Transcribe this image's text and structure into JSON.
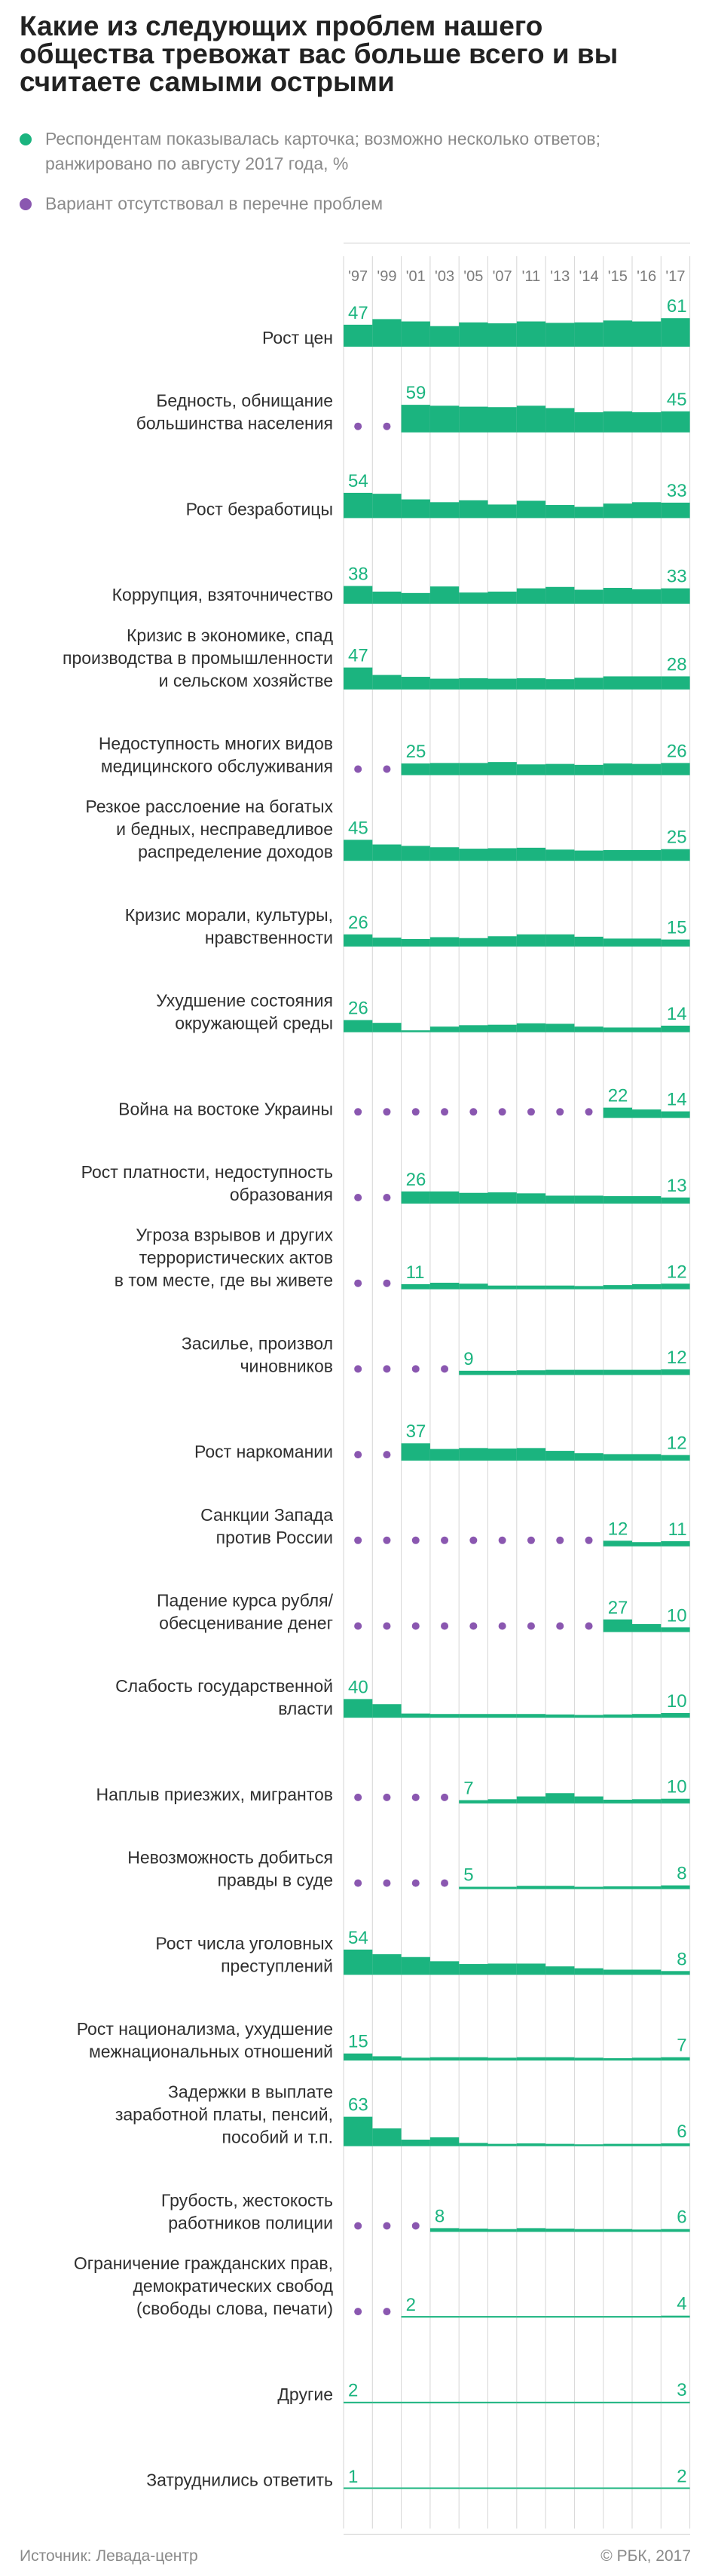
{
  "title": "Какие из следующих проблем нашего общества тревожат вас больше всего и вы считаете самыми острыми",
  "legend": {
    "shown": "Респондентам показывалась карточка; возможно несколько ответов; ранжировано по августу 2017 года, %",
    "absent": "Вариант отсутствовал в перечне проблем"
  },
  "colors": {
    "bar": "#1bb47f",
    "dot": "#8a57b0",
    "grid": "#d6d6d6"
  },
  "footer": {
    "source": "Источник: Левада-центр",
    "copyright": "© РБК, 2017"
  },
  "chart_data": {
    "type": "bar",
    "x": [
      "'97",
      "'99",
      "'01",
      "'03",
      "'05",
      "'07",
      "'11",
      "'13",
      "'14",
      "'15",
      "'16",
      "'17"
    ],
    "unit": "%",
    "rows": [
      {
        "label": [
          "Рост цен"
        ],
        "values": [
          47,
          59,
          54,
          44,
          52,
          50,
          54,
          51,
          52,
          56,
          54,
          61
        ],
        "labels": {
          "first": "47",
          "last": "61"
        }
      },
      {
        "label": [
          "Бедность, обнищание",
          "большинства населения"
        ],
        "values": [
          null,
          null,
          59,
          57,
          55,
          54,
          57,
          52,
          43,
          45,
          43,
          45
        ],
        "labels": {
          "first": "59",
          "last": "45"
        }
      },
      {
        "label": [
          "Рост безработицы"
        ],
        "values": [
          54,
          52,
          40,
          34,
          38,
          29,
          37,
          28,
          24,
          31,
          34,
          33
        ],
        "labels": {
          "first": "54",
          "last": "33"
        }
      },
      {
        "label": [
          "Коррупция, взяточничество"
        ],
        "values": [
          38,
          26,
          23,
          37,
          24,
          26,
          33,
          36,
          30,
          34,
          31,
          33
        ],
        "labels": {
          "first": "38",
          "last": "33"
        }
      },
      {
        "label": [
          "Кризис в экономике, спад",
          "производства в промышленности",
          "и сельском хозяйстве"
        ],
        "values": [
          47,
          31,
          27,
          23,
          24,
          23,
          24,
          22,
          25,
          28,
          28,
          28
        ],
        "labels": {
          "first": "47",
          "last": "28"
        }
      },
      {
        "label": [
          "Недоступность многих видов",
          "медицинского обслуживания"
        ],
        "values": [
          null,
          null,
          25,
          26,
          26,
          28,
          23,
          24,
          22,
          25,
          24,
          26
        ],
        "labels": {
          "first": "25",
          "last": "26"
        }
      },
      {
        "label": [
          "Резкое расслоение на богатых",
          "и бедных, несправедливое",
          "распределение доходов"
        ],
        "values": [
          45,
          35,
          32,
          29,
          26,
          27,
          28,
          24,
          22,
          23,
          23,
          25
        ],
        "labels": {
          "first": "45",
          "last": "25"
        }
      },
      {
        "label": [
          "Кризис морали, культуры,",
          "нравственности"
        ],
        "values": [
          26,
          19,
          16,
          20,
          18,
          22,
          26,
          26,
          21,
          17,
          17,
          15
        ],
        "labels": {
          "first": "26",
          "last": "15"
        }
      },
      {
        "label": [
          "Ухудшение состояния",
          "окружающей среды"
        ],
        "values": [
          26,
          20,
          4,
          12,
          15,
          16,
          19,
          18,
          12,
          10,
          10,
          14
        ],
        "labels": {
          "first": "26",
          "last": "14"
        }
      },
      {
        "label": [
          "Война на востоке Украины"
        ],
        "values": [
          null,
          null,
          null,
          null,
          null,
          null,
          null,
          null,
          null,
          22,
          18,
          14
        ],
        "labels": {
          "first": "22",
          "last": "14"
        }
      },
      {
        "label": [
          "Рост платности, недоступность",
          "образования"
        ],
        "values": [
          null,
          null,
          26,
          26,
          23,
          24,
          22,
          17,
          17,
          16,
          16,
          13
        ],
        "labels": {
          "first": "26",
          "last": "13"
        }
      },
      {
        "label": [
          "Угроза взрывов и других",
          "террористических актов",
          "в том месте, где вы живете"
        ],
        "values": [
          null,
          null,
          11,
          14,
          12,
          8,
          8,
          8,
          7,
          9,
          11,
          12
        ],
        "labels": {
          "first": "11",
          "last": "12"
        }
      },
      {
        "label": [
          "Засилье, произвол",
          "чиновников"
        ],
        "values": [
          null,
          null,
          null,
          null,
          9,
          9,
          10,
          11,
          11,
          11,
          11,
          12
        ],
        "labels": {
          "first": "9",
          "last": "12"
        }
      },
      {
        "label": [
          "Рост наркомании"
        ],
        "values": [
          null,
          null,
          37,
          25,
          27,
          26,
          27,
          21,
          16,
          14,
          14,
          12
        ],
        "labels": {
          "first": "37",
          "last": "12"
        }
      },
      {
        "label": [
          "Санкции Запада",
          "против России"
        ],
        "values": [
          null,
          null,
          null,
          null,
          null,
          null,
          null,
          null,
          null,
          12,
          9,
          11
        ],
        "labels": {
          "first": "12",
          "last": "11"
        }
      },
      {
        "label": [
          "Падение курса рубля/",
          "обесценивание денег"
        ],
        "values": [
          null,
          null,
          null,
          null,
          null,
          null,
          null,
          null,
          null,
          27,
          17,
          10
        ],
        "labels": {
          "first": "27",
          "last": "10"
        }
      },
      {
        "label": [
          "Слабость государственной",
          "власти"
        ],
        "values": [
          40,
          29,
          9,
          8,
          8,
          8,
          8,
          7,
          6,
          7,
          8,
          10
        ],
        "labels": {
          "first": "40",
          "last": "10"
        }
      },
      {
        "label": [
          "Наплыв приезжих, мигрантов"
        ],
        "values": [
          null,
          null,
          null,
          null,
          7,
          9,
          15,
          22,
          15,
          8,
          9,
          10
        ],
        "labels": {
          "first": "7",
          "last": "10"
        }
      },
      {
        "label": [
          "Невозможность добиться",
          "правды в суде"
        ],
        "values": [
          null,
          null,
          null,
          null,
          5,
          5,
          7,
          7,
          5,
          6,
          6,
          8
        ],
        "labels": {
          "first": "5",
          "last": "8"
        }
      },
      {
        "label": [
          "Рост числа уголовных",
          "преступлений"
        ],
        "values": [
          54,
          44,
          38,
          29,
          23,
          24,
          24,
          18,
          14,
          11,
          11,
          8
        ],
        "labels": {
          "first": "54",
          "last": "8"
        }
      },
      {
        "label": [
          "Рост национализма, ухудшение",
          "межнациональных отношений"
        ],
        "values": [
          15,
          9,
          6,
          7,
          7,
          6,
          7,
          7,
          6,
          5,
          6,
          7
        ],
        "labels": {
          "first": "15",
          "last": "7"
        }
      },
      {
        "label": [
          "Задержки в выплате",
          "заработной платы, пенсий,",
          "пособий и т.п."
        ],
        "values": [
          63,
          38,
          14,
          19,
          7,
          5,
          6,
          5,
          4,
          5,
          5,
          6
        ],
        "labels": {
          "first": "63",
          "last": "6"
        }
      },
      {
        "label": [
          "Грубость, жестокость",
          "работников полиции"
        ],
        "values": [
          null,
          null,
          null,
          8,
          7,
          6,
          8,
          7,
          6,
          6,
          5,
          6
        ],
        "labels": {
          "first": "8",
          "last": "6"
        }
      },
      {
        "label": [
          "Ограничение гражданских прав,",
          "демократических свобод",
          "(свободы слова, печати)"
        ],
        "values": [
          null,
          null,
          2,
          2,
          2,
          2,
          2,
          3,
          3,
          3,
          3,
          4
        ],
        "labels": {
          "first": "2",
          "last": "4"
        }
      },
      {
        "label": [
          "Другие"
        ],
        "values": [
          2,
          2,
          2,
          2,
          2,
          2,
          2,
          2,
          2,
          2,
          3,
          3
        ],
        "labels": {
          "first": "2",
          "last": "3"
        }
      },
      {
        "label": [
          "Затруднились ответить"
        ],
        "values": [
          1,
          1,
          2,
          1,
          1,
          1,
          2,
          2,
          2,
          1,
          2,
          2
        ],
        "labels": {
          "first": "1",
          "last": "2"
        }
      }
    ]
  }
}
